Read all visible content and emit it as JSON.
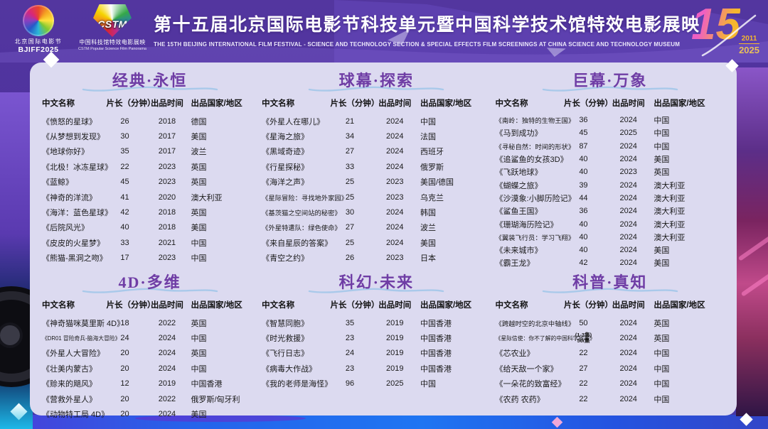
{
  "header": {
    "logo1": {
      "cn": "北京国际电影节",
      "en": "BJIFF2025"
    },
    "logo2": {
      "mark": "CSTM",
      "cn": "中国科技馆特效电影展映",
      "en": "CSTM Popular Science Film Panorama"
    },
    "title": "第十五届北京国际电影节科技单元暨中国科学技术馆特效电影展映",
    "subtitle": "THE 15TH BEIJING INTERNATIONAL FILM FESTIVAL - SCIENCE AND TECHNOLOGY SECTION & SPECIAL EFFECTS FILM SCREENINGS AT CHINA SCIENCE AND TECHNOLOGY MUSEUM",
    "badge": {
      "number": "15",
      "year_start": "2011",
      "year_end": "2025"
    }
  },
  "columns": [
    "中文名称",
    "片长（分钟）",
    "出品时间",
    "出品国家/地区"
  ],
  "sections": [
    {
      "title": "经典·永恒",
      "rows": [
        {
          "name": "《愤怒的星球》",
          "duration": "26",
          "year": "2018",
          "country": "德国"
        },
        {
          "name": "《从梦想到发现》",
          "duration": "30",
          "year": "2017",
          "country": "美国"
        },
        {
          "name": "《地球你好》",
          "duration": "35",
          "year": "2017",
          "country": "波兰"
        },
        {
          "name": "《北极！冰冻星球》",
          "duration": "22",
          "year": "2023",
          "country": "英国"
        },
        {
          "name": "《蓝鲸》",
          "duration": "45",
          "year": "2023",
          "country": "英国"
        },
        {
          "name": "《神奇的洋流》",
          "duration": "41",
          "year": "2020",
          "country": "澳大利亚"
        },
        {
          "name": "《海洋：蓝色星球》",
          "duration": "42",
          "year": "2018",
          "country": "英国"
        },
        {
          "name": "《后院风光》",
          "duration": "40",
          "year": "2018",
          "country": "美国"
        },
        {
          "name": "《皮皮的火星梦》",
          "duration": "33",
          "year": "2021",
          "country": "中国"
        },
        {
          "name": "《熊猫-黑洞之吻》",
          "duration": "17",
          "year": "2023",
          "country": "中国"
        }
      ]
    },
    {
      "title": "球幕·探索",
      "rows": [
        {
          "name": "《外星人在哪儿》",
          "duration": "21",
          "year": "2024",
          "country": "中国"
        },
        {
          "name": "《星海之旅》",
          "duration": "34",
          "year": "2024",
          "country": "法国"
        },
        {
          "name": "《黑域奇迹》",
          "duration": "27",
          "year": "2024",
          "country": "西班牙"
        },
        {
          "name": "《行星探秘》",
          "duration": "33",
          "year": "2024",
          "country": "俄罗斯"
        },
        {
          "name": "《海洋之声》",
          "duration": "25",
          "year": "2023",
          "country": "美国/德国"
        },
        {
          "name": "《星际冒险：寻找地外家园》",
          "duration": "25",
          "year": "2023",
          "country": "乌克兰"
        },
        {
          "name": "《基茨猫之空间站的秘密》",
          "duration": "30",
          "year": "2024",
          "country": "韩国"
        },
        {
          "name": "《外星特遣队：绿色使命》",
          "duration": "27",
          "year": "2024",
          "country": "波兰"
        },
        {
          "name": "《来自星辰的答案》",
          "duration": "25",
          "year": "2024",
          "country": "美国"
        },
        {
          "name": "《青空之约》",
          "duration": "26",
          "year": "2023",
          "country": "日本"
        }
      ]
    },
    {
      "title": "巨幕·万象",
      "rows": [
        {
          "name": "《南岭：独特的生物王国》",
          "duration": "36",
          "year": "2024",
          "country": "中国"
        },
        {
          "name": "《马到成功》",
          "duration": "45",
          "year": "2025",
          "country": "中国"
        },
        {
          "name": "《寻秘自然：时间的形状》",
          "duration": "87",
          "year": "2024",
          "country": "中国"
        },
        {
          "name": "《追鲨鱼的女孩3D》",
          "duration": "40",
          "year": "2024",
          "country": "美国"
        },
        {
          "name": "《飞跃地球》",
          "duration": "40",
          "year": "2023",
          "country": "英国"
        },
        {
          "name": "《蝴蝶之旅》",
          "duration": "39",
          "year": "2024",
          "country": "澳大利亚"
        },
        {
          "name": "《沙漠象:小脚历险记》",
          "duration": "44",
          "year": "2024",
          "country": "澳大利亚"
        },
        {
          "name": "《鲨鱼王国》",
          "duration": "36",
          "year": "2024",
          "country": "澳大利亚"
        },
        {
          "name": "《珊瑚海历险记》",
          "duration": "40",
          "year": "2024",
          "country": "澳大利亚"
        },
        {
          "name": "《翼装飞行员：学习飞翔》",
          "duration": "40",
          "year": "2024",
          "country": "澳大利亚"
        },
        {
          "name": "《未来城市》",
          "duration": "40",
          "year": "2024",
          "country": "美国"
        },
        {
          "name": "《霸王龙》",
          "duration": "42",
          "year": "2024",
          "country": "美国"
        }
      ]
    },
    {
      "title": "4D·多维",
      "rows": [
        {
          "name": "《神奇猫咪莫里斯 4D》",
          "duration": "18",
          "year": "2022",
          "country": "英国"
        },
        {
          "name": "《DR01 冒险奇兵-脑海大冒险》",
          "duration": "24",
          "year": "2024",
          "country": "中国"
        },
        {
          "name": "《外星人大冒险》",
          "duration": "20",
          "year": "2024",
          "country": "英国"
        },
        {
          "name": "《壮美内蒙古》",
          "duration": "20",
          "year": "2024",
          "country": "中国"
        },
        {
          "name": "《赊来的飓风》",
          "duration": "12",
          "year": "2019",
          "country": "中国香港"
        },
        {
          "name": "《营救外星人》",
          "duration": "20",
          "year": "2022",
          "country": "俄罗斯/匈牙利"
        },
        {
          "name": "《动物特工局 4D》",
          "duration": "20",
          "year": "2024",
          "country": "美国"
        }
      ]
    },
    {
      "title": "科幻·未来",
      "rows": [
        {
          "name": "《智慧同胞》",
          "duration": "35",
          "year": "2019",
          "country": "中国香港"
        },
        {
          "name": "《时光救援》",
          "duration": "23",
          "year": "2019",
          "country": "中国香港"
        },
        {
          "name": "《飞行日志》",
          "duration": "24",
          "year": "2019",
          "country": "中国香港"
        },
        {
          "name": "《病毒大作战》",
          "duration": "23",
          "year": "2019",
          "country": "中国香港"
        },
        {
          "name": "《我的老师是海怪》",
          "duration": "96",
          "year": "2025",
          "country": "中国"
        }
      ]
    },
    {
      "title": "科普·真知",
      "rows": [
        {
          "name": "《跨越时空的北京中轴线》",
          "duration": "50",
          "year": "2024",
          "country": "英国"
        },
        {
          "name": "《星际信使：你不了解的中国科学故事》",
          "duration": "(1-3集)\n50/集",
          "year": "2024",
          "country": "英国"
        },
        {
          "name": "《芯农业》",
          "duration": "22",
          "year": "2024",
          "country": "中国"
        },
        {
          "name": "《给天敌一个家》",
          "duration": "27",
          "year": "2024",
          "country": "中国"
        },
        {
          "name": "《一朵花的致富经》",
          "duration": "22",
          "year": "2024",
          "country": "中国"
        },
        {
          "name": "《农药 农药》",
          "duration": "22",
          "year": "2024",
          "country": "中国"
        }
      ]
    }
  ],
  "colors": {
    "header_background": "#4b2f9e",
    "card_background": "#dcdaf0",
    "section_title": "#6f3da5",
    "swash_blue": "#a9c9ea",
    "bottom_band_blue": "#2563eb",
    "badge_pink": "#ef5fc3",
    "badge_gold": "#f5b62e",
    "header_text": "#ffffff",
    "table_text": "#1a1a1a"
  }
}
